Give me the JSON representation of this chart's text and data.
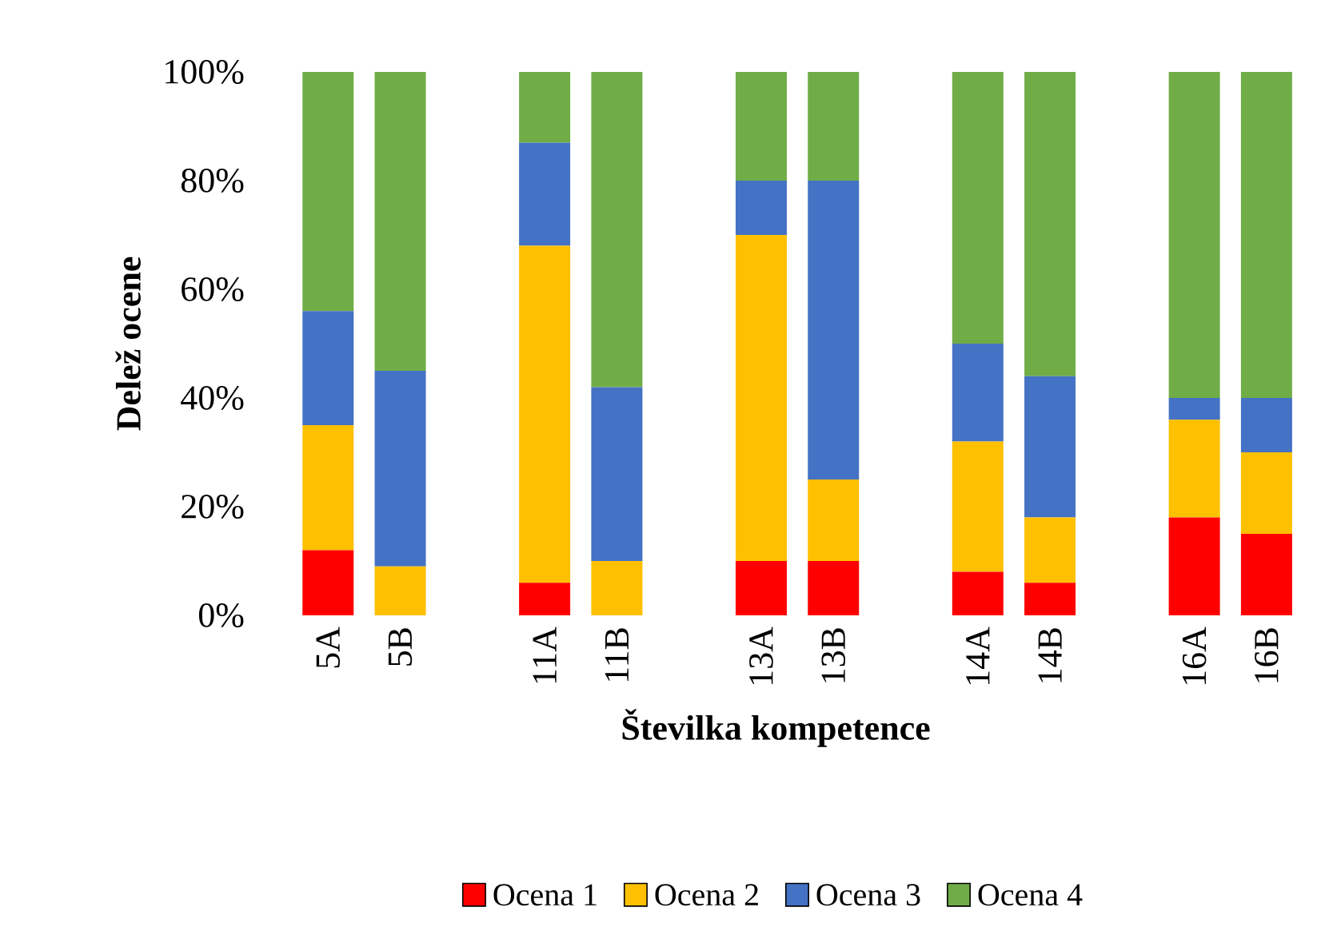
{
  "chart_data": {
    "type": "bar",
    "stacked": true,
    "xlabel": "Številka kompetence",
    "ylabel": "Delež ocene",
    "categories": [
      "5A",
      "5B",
      null,
      "11A",
      "11B",
      null,
      "13A",
      "13B",
      null,
      "14A",
      "14B",
      null,
      "16A",
      "16B"
    ],
    "series": [
      {
        "name": "Ocena 1",
        "color": "#ff0000",
        "values": [
          0.12,
          0,
          null,
          0.06,
          0,
          null,
          0.1,
          0.1,
          null,
          0.08,
          0.06,
          null,
          0.18,
          0.15
        ]
      },
      {
        "name": "Ocena 2",
        "color": "#ffc000",
        "values": [
          0.23,
          0.09,
          null,
          0.62,
          0.1,
          null,
          0.6,
          0.15,
          null,
          0.24,
          0.12,
          null,
          0.18,
          0.15
        ]
      },
      {
        "name": "Ocena 3",
        "color": "#4472c4",
        "values": [
          0.21,
          0.36,
          null,
          0.19,
          0.32,
          null,
          0.1,
          0.55,
          null,
          0.18,
          0.26,
          null,
          0.04,
          0.1
        ]
      },
      {
        "name": "Ocena 4",
        "color": "#70ad47",
        "values": [
          0.44,
          0.55,
          null,
          0.13,
          0.58,
          null,
          0.2,
          0.2,
          null,
          0.5,
          0.56,
          null,
          0.6,
          0.6
        ]
      }
    ],
    "ylim": [
      0,
      1
    ],
    "yticks": [
      {
        "value": 0,
        "label": "0%"
      },
      {
        "value": 0.2,
        "label": "20%"
      },
      {
        "value": 0.4,
        "label": "40%"
      },
      {
        "value": 0.6,
        "label": "60%"
      },
      {
        "value": 0.8,
        "label": "80%"
      },
      {
        "value": 1,
        "label": "100%"
      }
    ],
    "grid": false,
    "legend": "bottom"
  }
}
